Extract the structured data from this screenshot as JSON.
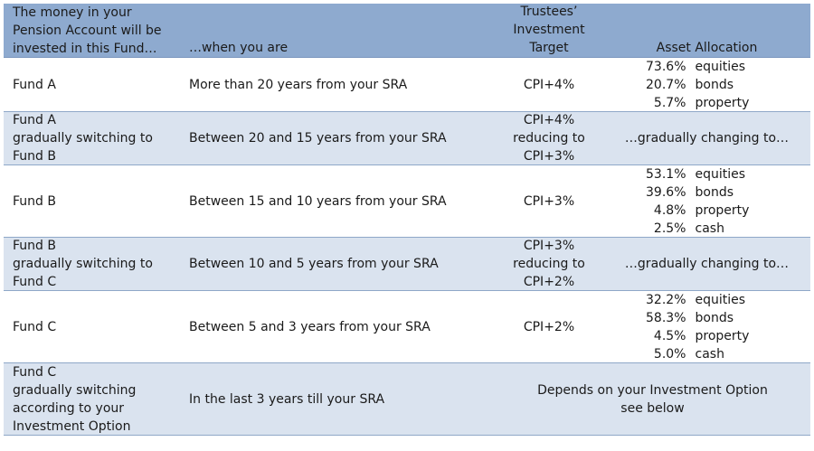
{
  "header": {
    "fund_col": [
      "The money in your",
      "Pension Account will be",
      "invested in this Fund…"
    ],
    "when_col": "…when you are",
    "target_col": [
      "Trustees’",
      "Investment",
      "Target"
    ],
    "alloc_col": "Asset Allocation"
  },
  "rows": [
    {
      "fund": [
        "Fund A"
      ],
      "when": "More than 20 years from your SRA",
      "target": [
        "CPI+4%"
      ],
      "allocation": [
        {
          "pct": "73.6%",
          "asset": "equities"
        },
        {
          "pct": "20.7%",
          "asset": "bonds"
        },
        {
          "pct": "5.7%",
          "asset": "property"
        }
      ]
    },
    {
      "fund": [
        "Fund A",
        "gradually switching to",
        "Fund B"
      ],
      "when": "Between 20 and 15 years from your SRA",
      "target": [
        "CPI+4%",
        "reducing to",
        "CPI+3%"
      ],
      "allocation_text": "…gradually changing to…"
    },
    {
      "fund": [
        "Fund B"
      ],
      "when": "Between 15 and 10 years from your SRA",
      "target": [
        "CPI+3%"
      ],
      "allocation": [
        {
          "pct": "53.1%",
          "asset": "equities"
        },
        {
          "pct": "39.6%",
          "asset": "bonds"
        },
        {
          "pct": "4.8%",
          "asset": "property"
        },
        {
          "pct": "2.5%",
          "asset": "cash"
        }
      ]
    },
    {
      "fund": [
        "Fund B",
        "gradually switching to",
        "Fund C"
      ],
      "when": "Between 10 and 5 years from your SRA",
      "target": [
        "CPI+3%",
        "reducing to",
        "CPI+2%"
      ],
      "allocation_text": "…gradually changing to…"
    },
    {
      "fund": [
        "Fund C"
      ],
      "when": "Between 5 and 3 years from your SRA",
      "target": [
        "CPI+2%"
      ],
      "allocation": [
        {
          "pct": "32.2%",
          "asset": "equities"
        },
        {
          "pct": "58.3%",
          "asset": "bonds"
        },
        {
          "pct": "4.5%",
          "asset": "property"
        },
        {
          "pct": "5.0%",
          "asset": "cash"
        }
      ]
    },
    {
      "fund": [
        "Fund C",
        "gradually switching",
        "according to your",
        "Investment Option"
      ],
      "when": "In the last 3 years till your SRA",
      "combined": [
        "Depends on your Investment Option",
        "see below"
      ]
    }
  ]
}
